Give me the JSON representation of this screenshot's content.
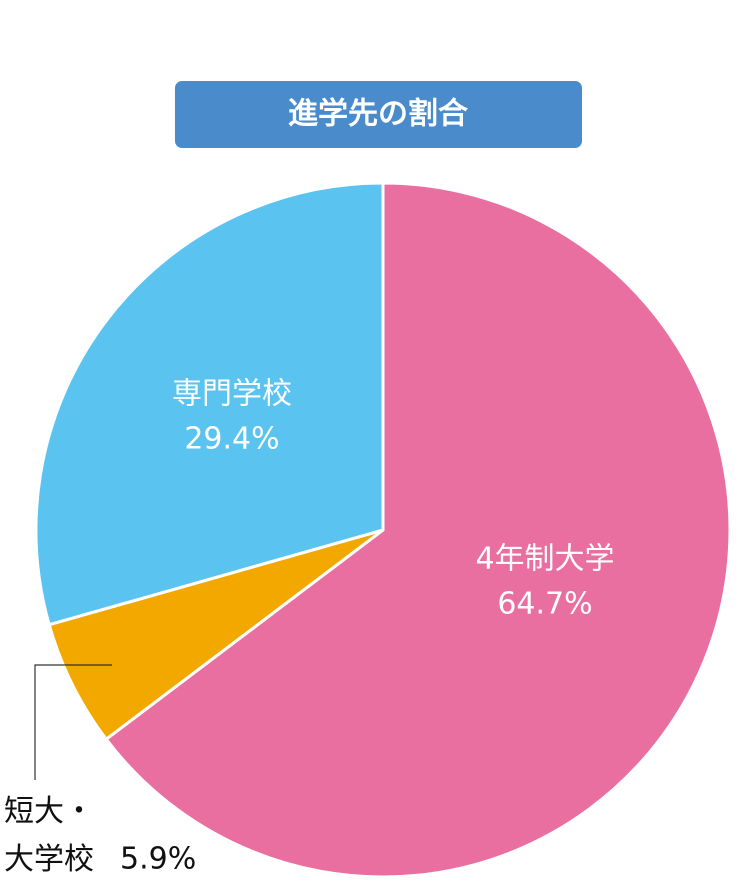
{
  "chart_data": {
    "type": "pie",
    "title": "進学先の割合",
    "categories": [
      "4年制大学",
      "短大・大学校",
      "専門学校"
    ],
    "values": [
      64.7,
      5.9,
      29.4
    ],
    "value_labels": [
      "64.7%",
      "5.9%",
      "29.4%"
    ],
    "colors": [
      "#e96fa0",
      "#f3a800",
      "#5bc3ef"
    ]
  }
}
